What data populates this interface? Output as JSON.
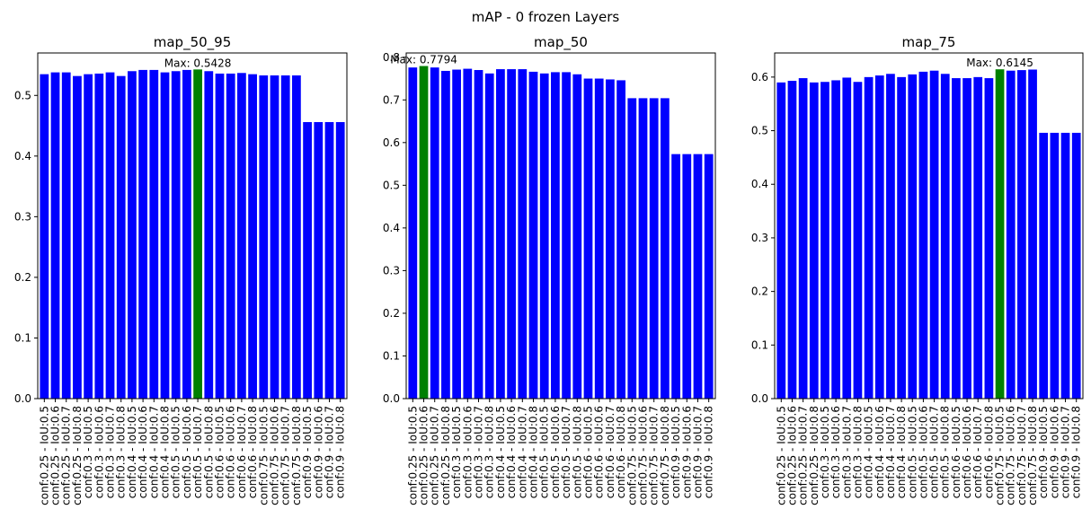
{
  "figure": {
    "suptitle": "mAP - 0 frozen Layers"
  },
  "colors": {
    "bar": "#0000ff",
    "highlight": "#008000"
  },
  "chart_data": [
    {
      "type": "bar",
      "title": "map_50_95",
      "xlabel": "",
      "ylabel": "",
      "ylim": [
        0,
        0.57
      ],
      "yticks": [
        0.0,
        0.1,
        0.2,
        0.3,
        0.4,
        0.5
      ],
      "ytick_labels": [
        "0.0",
        "0.1",
        "0.2",
        "0.3",
        "0.4",
        "0.5"
      ],
      "categories": [
        "conf:0.25 - IoU:0.5",
        "conf:0.25 - IoU:0.6",
        "conf:0.25 - IoU:0.7",
        "conf:0.25 - IoU:0.8",
        "conf:0.3 - IoU:0.5",
        "conf:0.3 - IoU:0.6",
        "conf:0.3 - IoU:0.7",
        "conf:0.3 - IoU:0.8",
        "conf:0.4 - IoU:0.5",
        "conf:0.4 - IoU:0.6",
        "conf:0.4 - IoU:0.7",
        "conf:0.4 - IoU:0.8",
        "conf:0.5 - IoU:0.5",
        "conf:0.5 - IoU:0.6",
        "conf:0.5 - IoU:0.7",
        "conf:0.5 - IoU:0.8",
        "conf:0.6 - IoU:0.5",
        "conf:0.6 - IoU:0.6",
        "conf:0.6 - IoU:0.7",
        "conf:0.6 - IoU:0.8",
        "conf:0.75 - IoU:0.5",
        "conf:0.75 - IoU:0.6",
        "conf:0.75 - IoU:0.7",
        "conf:0.75 - IoU:0.8",
        "conf:0.9 - IoU:0.5",
        "conf:0.9 - IoU:0.6",
        "conf:0.9 - IoU:0.7",
        "conf:0.9 - IoU:0.8"
      ],
      "values": [
        0.535,
        0.538,
        0.538,
        0.532,
        0.535,
        0.536,
        0.538,
        0.532,
        0.54,
        0.542,
        0.542,
        0.538,
        0.54,
        0.542,
        0.5428,
        0.54,
        0.536,
        0.536,
        0.537,
        0.535,
        0.533,
        0.533,
        0.533,
        0.533,
        0.456,
        0.456,
        0.456,
        0.456
      ],
      "highlight_index": 14,
      "annotation": "Max: 0.5428"
    },
    {
      "type": "bar",
      "title": "map_50",
      "xlabel": "",
      "ylabel": "",
      "ylim": [
        0,
        0.81
      ],
      "yticks": [
        0.0,
        0.1,
        0.2,
        0.3,
        0.4,
        0.5,
        0.6,
        0.7,
        0.8
      ],
      "ytick_labels": [
        "0.0",
        "0.1",
        "0.2",
        "0.3",
        "0.4",
        "0.5",
        "0.6",
        "0.7",
        "0.8"
      ],
      "categories": [
        "conf:0.25 - IoU:0.5",
        "conf:0.25 - IoU:0.6",
        "conf:0.25 - IoU:0.7",
        "conf:0.25 - IoU:0.8",
        "conf:0.3 - IoU:0.5",
        "conf:0.3 - IoU:0.6",
        "conf:0.3 - IoU:0.7",
        "conf:0.3 - IoU:0.8",
        "conf:0.4 - IoU:0.5",
        "conf:0.4 - IoU:0.6",
        "conf:0.4 - IoU:0.7",
        "conf:0.4 - IoU:0.8",
        "conf:0.5 - IoU:0.5",
        "conf:0.5 - IoU:0.6",
        "conf:0.5 - IoU:0.7",
        "conf:0.5 - IoU:0.8",
        "conf:0.6 - IoU:0.5",
        "conf:0.6 - IoU:0.6",
        "conf:0.6 - IoU:0.7",
        "conf:0.6 - IoU:0.8",
        "conf:0.75 - IoU:0.5",
        "conf:0.75 - IoU:0.6",
        "conf:0.75 - IoU:0.7",
        "conf:0.75 - IoU:0.8",
        "conf:0.9 - IoU:0.5",
        "conf:0.9 - IoU:0.6",
        "conf:0.9 - IoU:0.7",
        "conf:0.9 - IoU:0.8"
      ],
      "values": [
        0.776,
        0.7794,
        0.776,
        0.768,
        0.771,
        0.773,
        0.77,
        0.762,
        0.772,
        0.772,
        0.772,
        0.766,
        0.762,
        0.765,
        0.765,
        0.76,
        0.75,
        0.75,
        0.748,
        0.746,
        0.704,
        0.704,
        0.704,
        0.704,
        0.573,
        0.573,
        0.573,
        0.573
      ],
      "highlight_index": 1,
      "annotation": "Max: 0.7794"
    },
    {
      "type": "bar",
      "title": "map_75",
      "xlabel": "",
      "ylabel": "",
      "ylim": [
        0,
        0.645
      ],
      "yticks": [
        0.0,
        0.1,
        0.2,
        0.3,
        0.4,
        0.5,
        0.6
      ],
      "ytick_labels": [
        "0.0",
        "0.1",
        "0.2",
        "0.3",
        "0.4",
        "0.5",
        "0.6"
      ],
      "categories": [
        "conf:0.25 - IoU:0.5",
        "conf:0.25 - IoU:0.6",
        "conf:0.25 - IoU:0.7",
        "conf:0.25 - IoU:0.8",
        "conf:0.3 - IoU:0.5",
        "conf:0.3 - IoU:0.6",
        "conf:0.3 - IoU:0.7",
        "conf:0.3 - IoU:0.8",
        "conf:0.4 - IoU:0.5",
        "conf:0.4 - IoU:0.6",
        "conf:0.4 - IoU:0.7",
        "conf:0.4 - IoU:0.8",
        "conf:0.5 - IoU:0.5",
        "conf:0.5 - IoU:0.6",
        "conf:0.5 - IoU:0.7",
        "conf:0.5 - IoU:0.8",
        "conf:0.6 - IoU:0.5",
        "conf:0.6 - IoU:0.6",
        "conf:0.6 - IoU:0.7",
        "conf:0.6 - IoU:0.8",
        "conf:0.75 - IoU:0.5",
        "conf:0.75 - IoU:0.6",
        "conf:0.75 - IoU:0.7",
        "conf:0.75 - IoU:0.8",
        "conf:0.9 - IoU:0.5",
        "conf:0.9 - IoU:0.6",
        "conf:0.9 - IoU:0.7",
        "conf:0.9 - IoU:0.8"
      ],
      "values": [
        0.59,
        0.593,
        0.598,
        0.59,
        0.591,
        0.594,
        0.599,
        0.591,
        0.6,
        0.603,
        0.606,
        0.6,
        0.605,
        0.61,
        0.612,
        0.606,
        0.598,
        0.598,
        0.6,
        0.598,
        0.6145,
        0.612,
        0.613,
        0.614,
        0.496,
        0.496,
        0.496,
        0.496
      ],
      "highlight_index": 20,
      "annotation": "Max: 0.6145"
    }
  ]
}
